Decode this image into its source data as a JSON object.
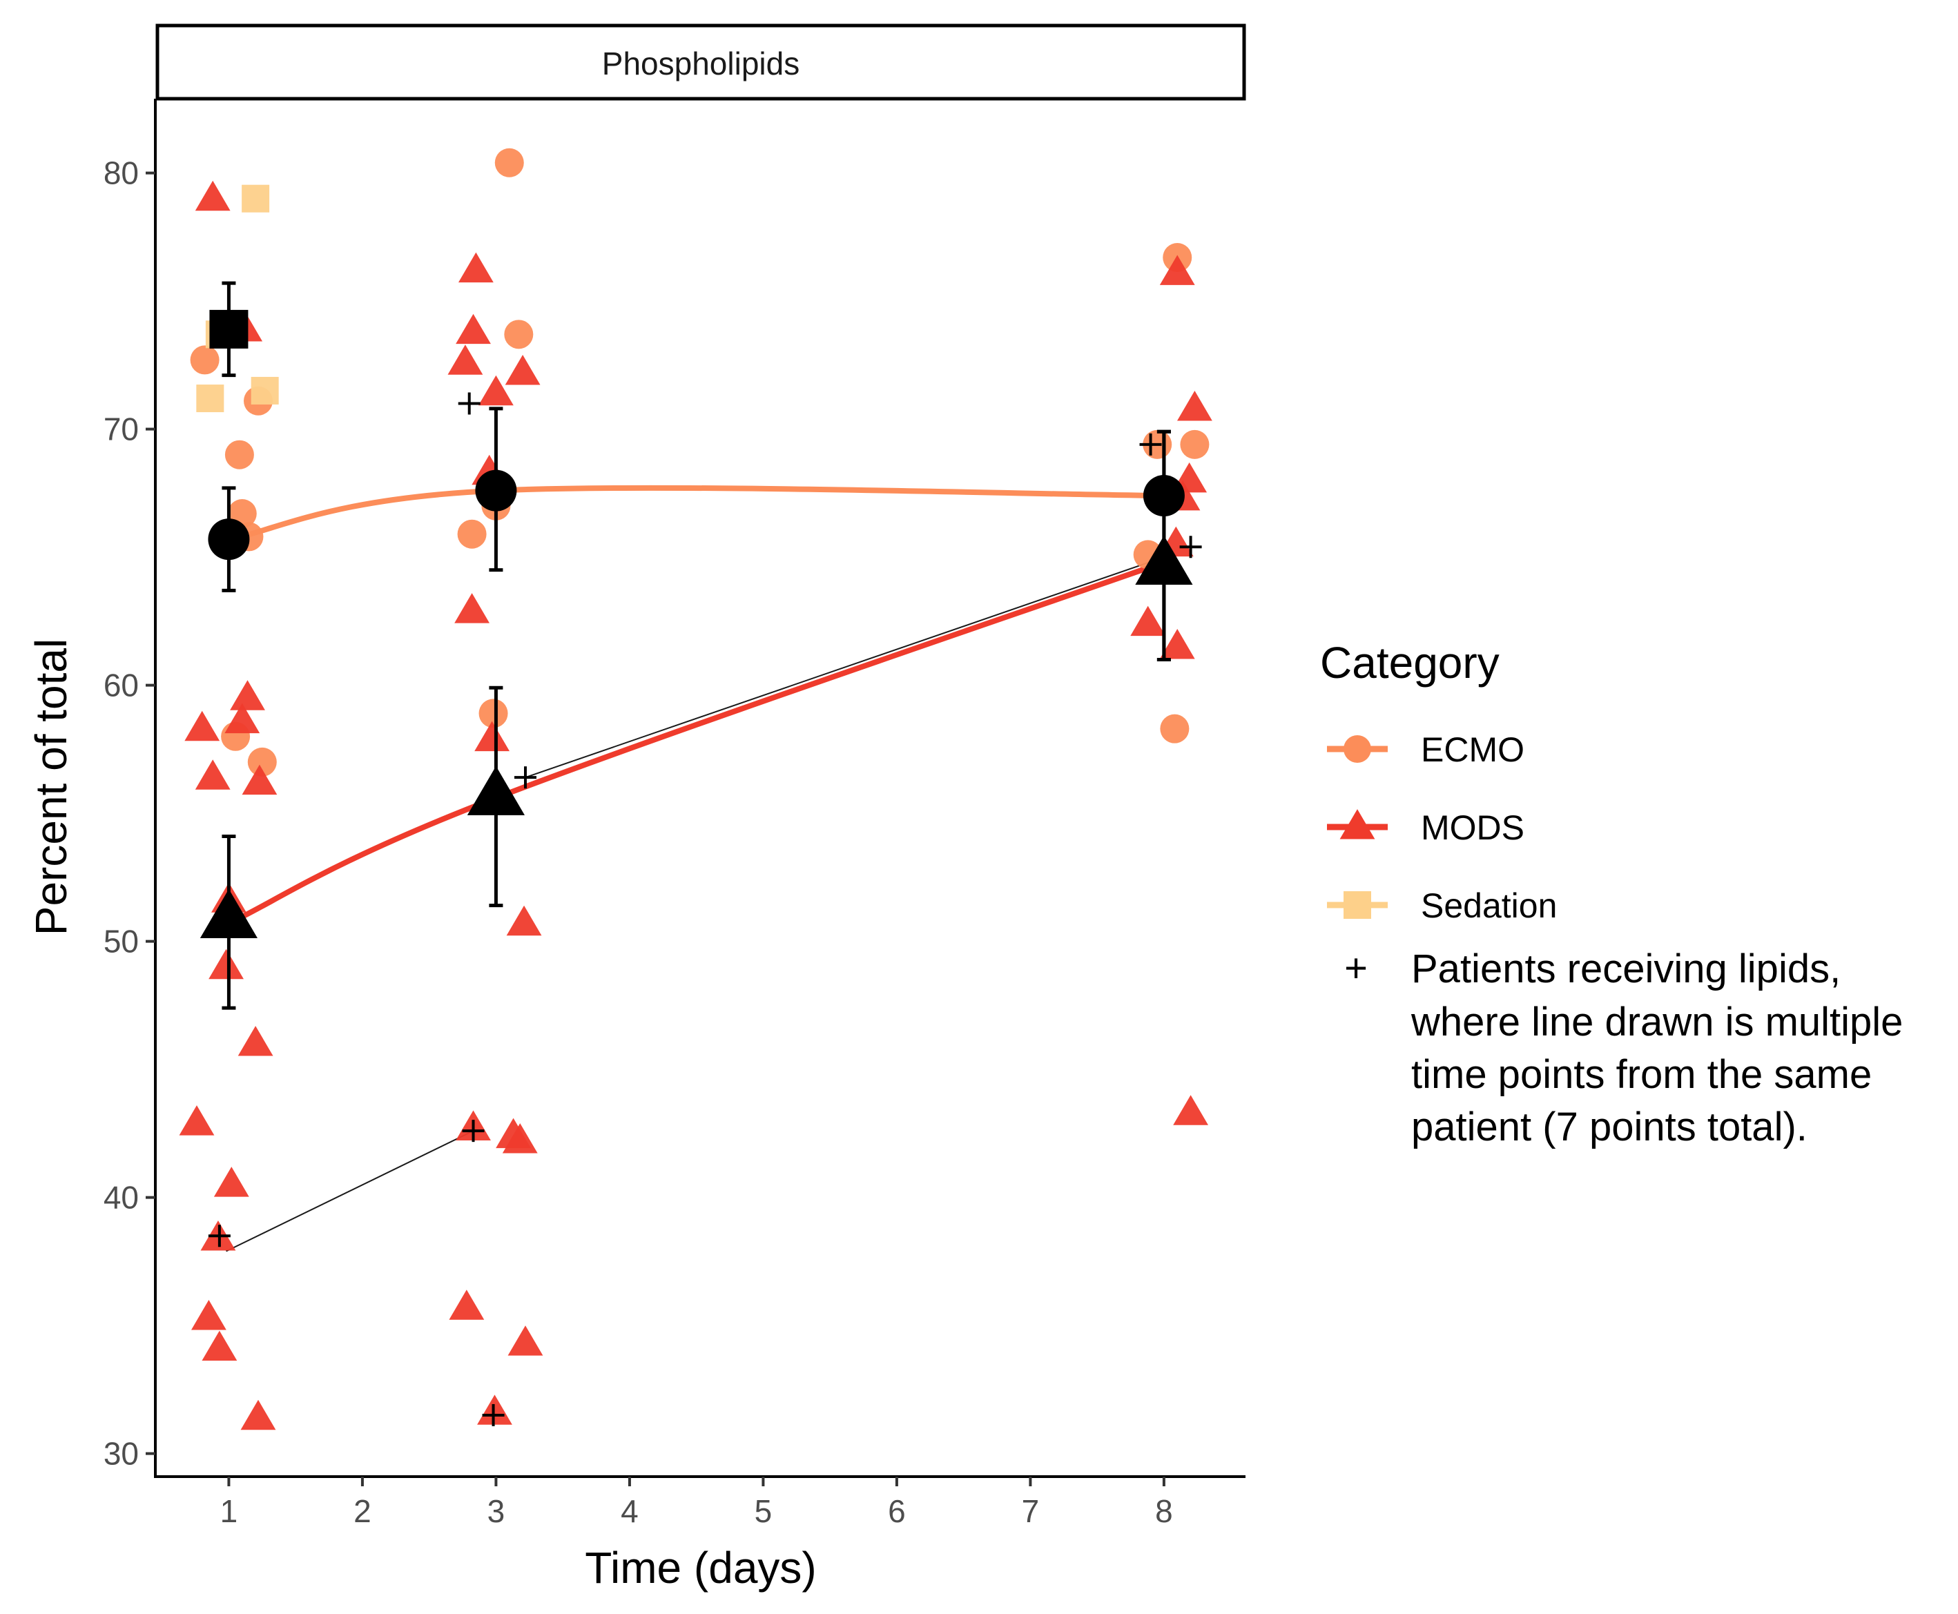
{
  "chart_data": {
    "type": "scatter",
    "panel_title": "Phospholipids",
    "xlabel": "Time (days)",
    "ylabel": "Percent of total",
    "x_ticks": [
      1,
      2,
      3,
      4,
      5,
      6,
      7,
      8
    ],
    "y_ticks": [
      30,
      40,
      50,
      60,
      70,
      80
    ],
    "xlim": [
      0.45,
      8.6
    ],
    "ylim": [
      29.1,
      82.9
    ],
    "grid": false,
    "legend_position": "right",
    "legend": {
      "title": "Category",
      "entries": [
        {
          "label": "ECMO",
          "color": "#fc8d59",
          "shape": "circle"
        },
        {
          "label": "MODS",
          "color": "#ef3b2c",
          "shape": "triangle"
        },
        {
          "label": "Sedation",
          "color": "#fdd08a",
          "shape": "square"
        }
      ],
      "note_symbol": "+",
      "note_lines": [
        "Patients receiving lipids,",
        "where line drawn is multiple",
        "time points from the same",
        "patient (7 points total)."
      ]
    },
    "series": [
      {
        "name": "ECMO",
        "color": "#fc8d59",
        "shape": "circle",
        "points": [
          [
            0.82,
            72.7
          ],
          [
            1.08,
            69.0
          ],
          [
            1.22,
            71.1
          ],
          [
            1.1,
            66.7
          ],
          [
            1.15,
            65.8
          ],
          [
            1.05,
            58.0
          ],
          [
            1.25,
            57.0
          ],
          [
            3.1,
            80.4
          ],
          [
            3.17,
            73.7
          ],
          [
            2.82,
            65.9
          ],
          [
            3.0,
            67.0
          ],
          [
            2.98,
            58.9
          ],
          [
            7.88,
            65.1
          ],
          [
            7.95,
            69.4
          ],
          [
            8.1,
            76.7
          ],
          [
            8.23,
            69.4
          ],
          [
            8.08,
            58.3
          ]
        ],
        "trend": [
          [
            1,
            65.7
          ],
          [
            3,
            67.6
          ],
          [
            8,
            67.4
          ]
        ],
        "mean": [
          {
            "x": 1,
            "y": 65.7,
            "err": [
              63.7,
              67.7
            ]
          },
          {
            "x": 3,
            "y": 67.6,
            "err": [
              64.5,
              70.8
            ]
          },
          {
            "x": 8,
            "y": 67.4,
            "err": [
              61.0,
              69.9
            ]
          }
        ]
      },
      {
        "name": "MODS",
        "color": "#ef3b2c",
        "shape": "triangle",
        "points": [
          [
            0.88,
            79.0
          ],
          [
            1.12,
            73.9
          ],
          [
            0.8,
            58.3
          ],
          [
            1.14,
            59.5
          ],
          [
            1.1,
            58.6
          ],
          [
            0.88,
            56.4
          ],
          [
            1.23,
            56.2
          ],
          [
            1.0,
            51.6
          ],
          [
            0.98,
            49.0
          ],
          [
            1.2,
            46.0
          ],
          [
            0.76,
            42.9
          ],
          [
            1.02,
            40.5
          ],
          [
            0.92,
            38.4
          ],
          [
            0.85,
            35.3
          ],
          [
            0.93,
            34.1
          ],
          [
            1.22,
            31.4
          ],
          [
            2.85,
            76.2
          ],
          [
            2.83,
            73.8
          ],
          [
            2.77,
            72.6
          ],
          [
            3.0,
            71.4
          ],
          [
            3.2,
            72.2
          ],
          [
            2.95,
            68.3
          ],
          [
            2.82,
            62.9
          ],
          [
            2.97,
            57.9
          ],
          [
            3.21,
            50.7
          ],
          [
            2.83,
            42.7
          ],
          [
            3.18,
            42.2
          ],
          [
            3.13,
            42.4
          ],
          [
            2.78,
            35.7
          ],
          [
            3.22,
            34.3
          ],
          [
            2.99,
            31.6
          ],
          [
            8.1,
            76.1
          ],
          [
            8.23,
            70.8
          ],
          [
            8.19,
            68.0
          ],
          [
            8.14,
            67.3
          ],
          [
            8.09,
            65.5
          ],
          [
            7.88,
            62.4
          ],
          [
            8.1,
            61.5
          ],
          [
            8.2,
            43.3
          ]
        ],
        "trend": [
          [
            1,
            50.7
          ],
          [
            3,
            55.6
          ],
          [
            8,
            64.8
          ]
        ],
        "mean": [
          {
            "x": 1,
            "y": 50.9,
            "err": [
              47.4,
              54.1
            ]
          },
          {
            "x": 3,
            "y": 55.7,
            "err": [
              51.4,
              59.9
            ]
          },
          {
            "x": 8,
            "y": 64.7,
            "err": [
              61.0,
              69.9
            ]
          }
        ]
      },
      {
        "name": "Sedation",
        "color": "#fdd08a",
        "shape": "square",
        "points": [
          [
            1.2,
            79.0
          ],
          [
            0.93,
            73.7
          ],
          [
            1.27,
            71.5
          ],
          [
            0.86,
            71.2
          ]
        ],
        "mean": [
          {
            "x": 1,
            "y": 73.9,
            "err": [
              72.1,
              75.7
            ]
          }
        ]
      }
    ],
    "lipid_points": [
      [
        0.93,
        38.5
      ],
      [
        2.83,
        42.6
      ],
      [
        2.8,
        71.0
      ],
      [
        3.22,
        56.4
      ],
      [
        2.98,
        31.5
      ],
      [
        7.9,
        69.4
      ],
      [
        8.2,
        65.4
      ]
    ],
    "patient_lines": [
      [
        [
          0.98,
          37.9
        ],
        [
          2.83,
          42.6
        ]
      ],
      [
        [
          3.22,
          56.4
        ],
        [
          8.0,
          65.0
        ]
      ]
    ]
  }
}
